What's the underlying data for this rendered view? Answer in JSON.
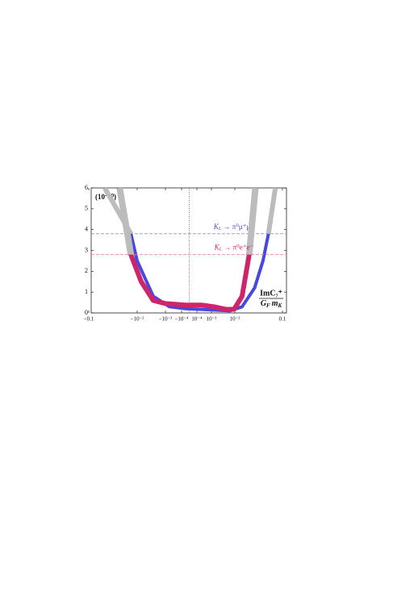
{
  "chart_data": {
    "type": "line",
    "y_unit_label": "(10⁻¹⁰)",
    "x_label": {
      "numerator": "ImC₇⁺",
      "denominator": [
        "G",
        "F",
        "m",
        "K"
      ]
    },
    "xticks": [
      {
        "value": -0.1,
        "label": "−0.1"
      },
      {
        "value": -0.01,
        "label": "−10⁻²"
      },
      {
        "value": -0.001,
        "label": "−10⁻³"
      },
      {
        "value": -0.0001,
        "label": "−10⁻⁴"
      },
      {
        "value": 0.0001,
        "label": "10⁻⁴"
      },
      {
        "value": 0.001,
        "label": "10⁻³"
      },
      {
        "value": 0.01,
        "label": "10⁻²"
      },
      {
        "value": 0.1,
        "label": "0.1"
      }
    ],
    "xlim": [
      -0.13,
      0.12
    ],
    "ylim": [
      0,
      6
    ],
    "yticks": [
      0,
      1,
      2,
      3,
      4,
      5,
      6
    ],
    "vline_x": 0,
    "series": [
      {
        "name": [
          "K",
          "L",
          " → π⁰μ⁺μ⁻"
        ],
        "color": "#4848e0",
        "limit_color": "#8c8ce8",
        "limit": 3.8,
        "excluded_color": "#bcbcbc",
        "x": [
          -0.047,
          -0.0135,
          -0.01,
          -0.0027,
          -0.00056,
          -4.7e-05,
          0.00078,
          0.0062,
          0.0142,
          0.026,
          0.039,
          0.051,
          0.071
        ],
        "values": [
          6,
          3.8,
          2.5,
          0.8,
          0.3,
          0.2,
          0.15,
          0.1,
          0.3,
          1.2,
          2.5,
          3.8,
          6
        ]
      },
      {
        "name": [
          "K",
          "L",
          " → π⁰e⁺e⁻"
        ],
        "color": "#d0246a",
        "limit_color": "#f07ca2",
        "limit": 2.8,
        "excluded_color": "#bcbcbc",
        "x": [
          -0.023,
          -0.0135,
          -0.0072,
          -0.0027,
          -0.001,
          -5e-05,
          0.00021,
          0.00127,
          0.0042,
          0.0093,
          0.0142,
          0.02,
          0.027
        ],
        "values": [
          6,
          2.8,
          1.5,
          0.6,
          0.45,
          0.38,
          0.38,
          0.3,
          0.17,
          0.18,
          0.8,
          2.8,
          6
        ]
      }
    ]
  }
}
